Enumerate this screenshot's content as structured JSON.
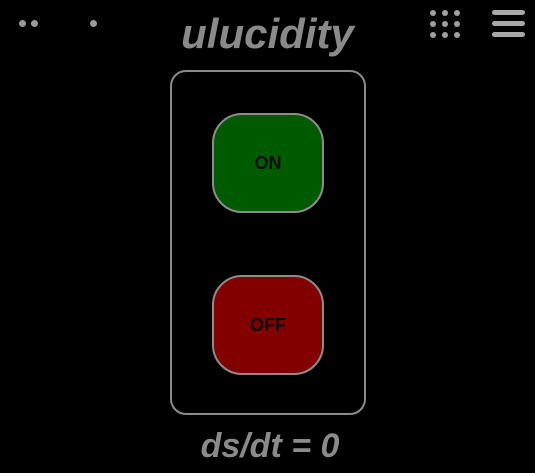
{
  "header": {
    "title": "ulucidity"
  },
  "icons": {
    "left_status": "dots-indicator-icon",
    "apps": "grid-icon",
    "menu": "hamburger-menu-icon"
  },
  "controls": {
    "on_label": "ON",
    "off_label": "OFF"
  },
  "status": {
    "readout": "ds/dt = 0"
  },
  "colors": {
    "background": "#000000",
    "on_button": "#005a00",
    "off_button": "#820000",
    "text_gray": "#8a8a8a",
    "border_gray": "#8a8a8a"
  }
}
